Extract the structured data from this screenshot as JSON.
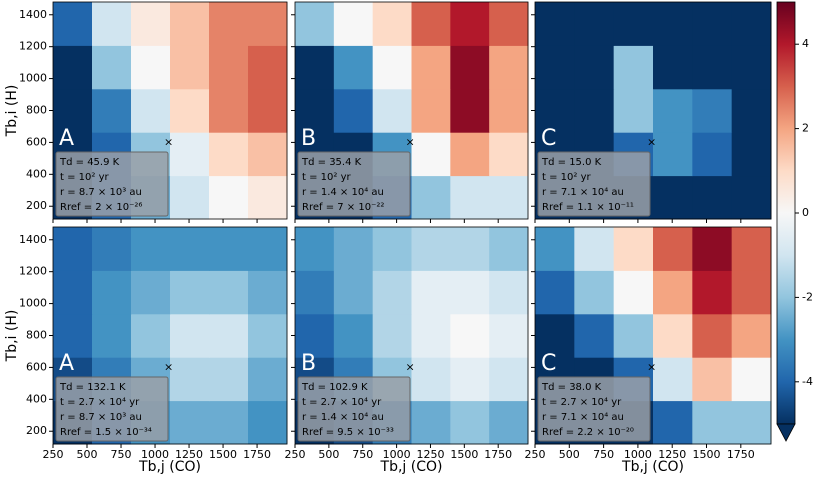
{
  "chart_data": {
    "type": "heatmap-grid",
    "x_label": "Tb,j (CO)",
    "y_label": "Tb,i (H)",
    "xlim": [
      250,
      1970
    ],
    "ylim": [
      120,
      1480
    ],
    "xticks": [
      250,
      500,
      750,
      1000,
      1250,
      1500,
      1750
    ],
    "yticks": [
      200,
      400,
      600,
      800,
      1000,
      1200,
      1400
    ],
    "panels": [
      {
        "label": "A",
        "marker": [
          1100,
          600
        ],
        "info": [
          "Td = 45.9 K",
          "t = 10² yr",
          "r = 8.7 × 10³ au",
          "Rref = 2 × 10⁻²⁶"
        ],
        "z": [
          [
            -5,
            -4,
            -2.5,
            -1,
            0,
            0.5
          ],
          [
            -5,
            -4,
            -2,
            -0.5,
            1,
            1.5
          ],
          [
            -5,
            -3.5,
            -1,
            1,
            2.5,
            3
          ],
          [
            -5,
            -2,
            0,
            1.5,
            2.5,
            3
          ],
          [
            -4,
            -1,
            0.5,
            1.5,
            2.5,
            2.5
          ]
        ]
      },
      {
        "label": "B",
        "marker": [
          1100,
          600
        ],
        "info": [
          "Td = 35.4 K",
          "t = 10² yr",
          "r = 1.4 × 10⁴ au",
          "Rref = 7 × 10⁻²²"
        ],
        "z": [
          [
            -5,
            -5,
            -4,
            -2,
            -1,
            -1
          ],
          [
            -5,
            -5,
            -3,
            0,
            2,
            1
          ],
          [
            -5,
            -4,
            -1,
            2,
            4.5,
            2
          ],
          [
            -5,
            -3,
            0,
            2,
            4.5,
            2
          ],
          [
            -2,
            0,
            1,
            3,
            4,
            3
          ]
        ]
      },
      {
        "label": "C",
        "marker": [
          1100,
          600
        ],
        "info": [
          "Td = 15.0 K",
          "t = 10² yr",
          "r = 7.1 × 10⁴ au",
          "Rref = 1.1 × 10⁻¹¹"
        ],
        "z": [
          [
            -5,
            -5,
            -5,
            -5,
            -5,
            -5
          ],
          [
            -5,
            -5,
            -4,
            -3,
            -4,
            -5
          ],
          [
            -5,
            -5,
            -2,
            -3,
            -3.5,
            -5
          ],
          [
            -5,
            -5,
            -2,
            -5,
            -5,
            -5
          ],
          [
            -5,
            -5,
            -5,
            -5,
            -5,
            -5
          ]
        ]
      },
      {
        "label": "A",
        "marker": [
          1100,
          600
        ],
        "info": [
          "Td = 132.1 K",
          "t = 2.7 × 10⁴ yr",
          "r = 8.7 × 10³ au",
          "Rref = 1.5 × 10⁻³⁴"
        ],
        "z": [
          [
            -5,
            -4,
            -3,
            -2.5,
            -2.5,
            -3
          ],
          [
            -4.5,
            -3.5,
            -2.5,
            -1.5,
            -1.5,
            -2.5
          ],
          [
            -4,
            -3,
            -2,
            -1,
            -1,
            -2
          ],
          [
            -4,
            -3,
            -2.5,
            -2,
            -2,
            -2.5
          ],
          [
            -4,
            -3.5,
            -3,
            -3,
            -3,
            -3
          ]
        ]
      },
      {
        "label": "B",
        "marker": [
          1100,
          600
        ],
        "info": [
          "Td = 102.9 K",
          "t = 2.7 × 10⁴ yr",
          "r = 1.4 × 10⁴ au",
          "Rref = 9.5 × 10⁻³³"
        ],
        "z": [
          [
            -5,
            -4.5,
            -3.5,
            -2.5,
            -2,
            -2.5
          ],
          [
            -4.5,
            -3.5,
            -2,
            -1,
            -0.5,
            -1
          ],
          [
            -4,
            -3,
            -1.5,
            -0.5,
            0,
            -0.5
          ],
          [
            -3.5,
            -2.5,
            -1.5,
            -0.5,
            -0.5,
            -1
          ],
          [
            -3,
            -2.5,
            -2,
            -1.5,
            -1.5,
            -2
          ]
        ]
      },
      {
        "label": "C",
        "marker": [
          1100,
          600
        ],
        "info": [
          "Td = 38.0 K",
          "t = 2.7 × 10⁴ yr",
          "r = 7.1 × 10⁴ au",
          "Rref = 2.2 × 10⁻²⁰"
        ],
        "z": [
          [
            -5,
            -5,
            -5,
            -4,
            -2,
            -2
          ],
          [
            -5,
            -5,
            -4,
            -1,
            1.5,
            0
          ],
          [
            -5,
            -4,
            -2,
            1,
            3,
            2
          ],
          [
            -4,
            -2,
            0,
            2,
            4,
            3
          ],
          [
            -3,
            -1,
            1,
            3,
            4.5,
            3
          ]
        ]
      }
    ],
    "colorbar": {
      "lim": [
        -5,
        5
      ],
      "ticks": [
        -4,
        -2,
        0,
        2,
        4
      ],
      "colormap": [
        "#053061",
        "#2166ac",
        "#4393c3",
        "#92c5de",
        "#d1e5f0",
        "#f7f7f7",
        "#fddbc7",
        "#f4a582",
        "#d6604d",
        "#b2182b",
        "#67001f"
      ]
    }
  }
}
